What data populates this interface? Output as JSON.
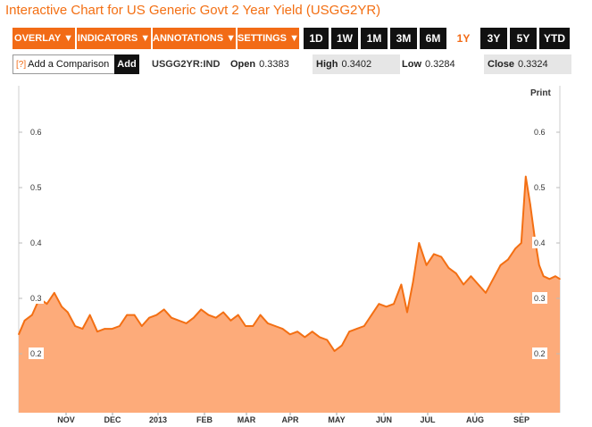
{
  "page_title": "Interactive Chart for US Generic Govt 2 Year Yield (USGG2YR)",
  "menus": [
    {
      "label": "OVERLAY",
      "arrow": "▼"
    },
    {
      "label": "INDICATORS",
      "arrow": "▼"
    },
    {
      "label": "ANNOTATIONS",
      "arrow": "▼"
    },
    {
      "label": "SETTINGS",
      "arrow": "▼"
    }
  ],
  "ranges": [
    "1D",
    "1W",
    "1M",
    "3M",
    "6M",
    "1Y",
    "3Y",
    "5Y",
    "YTD"
  ],
  "active_range": "1Y",
  "comparison": {
    "icon": "[?]",
    "placeholder": "Add a Comparison",
    "add_label": "Add"
  },
  "ticker": "USGG2YR:IND",
  "quote": {
    "open_label": "Open",
    "open": "0.3383",
    "high_label": "High",
    "high": "0.3402",
    "low_label": "Low",
    "low": "0.3284",
    "close_label": "Close",
    "close": "0.3324"
  },
  "print_label": "Print",
  "colors": {
    "accent": "#f26b16",
    "area_fill": "#fdab7a",
    "line": "#f36f13",
    "dark_button": "#111111"
  },
  "chart_data": {
    "type": "area",
    "title": "",
    "xlabel": "",
    "ylabel": "",
    "ylim": [
      0.1,
      0.66
    ],
    "yticks": [
      "0.6",
      "0.5",
      "0.4",
      "0.3",
      "0.2"
    ],
    "xticks": [
      "NOV",
      "DEC",
      "2013",
      "FEB",
      "MAR",
      "APR",
      "MAY",
      "JUN",
      "JUL",
      "AUG",
      "SEP"
    ],
    "grid": false,
    "x": [
      "2012-10-01",
      "2012-10-05",
      "2012-10-10",
      "2012-10-15",
      "2012-10-20",
      "2012-10-25",
      "2012-10-30",
      "2012-11-03",
      "2012-11-08",
      "2012-11-13",
      "2012-11-18",
      "2012-11-23",
      "2012-11-28",
      "2012-12-03",
      "2012-12-08",
      "2012-12-13",
      "2012-12-18",
      "2012-12-23",
      "2012-12-28",
      "2013-01-02",
      "2013-01-07",
      "2013-01-12",
      "2013-01-17",
      "2013-01-22",
      "2013-01-27",
      "2013-02-01",
      "2013-02-06",
      "2013-02-11",
      "2013-02-16",
      "2013-02-21",
      "2013-02-26",
      "2013-03-03",
      "2013-03-08",
      "2013-03-13",
      "2013-03-18",
      "2013-03-23",
      "2013-03-28",
      "2013-04-02",
      "2013-04-07",
      "2013-04-12",
      "2013-04-17",
      "2013-04-22",
      "2013-04-27",
      "2013-05-02",
      "2013-05-07",
      "2013-05-12",
      "2013-05-17",
      "2013-05-22",
      "2013-05-27",
      "2013-06-01",
      "2013-06-06",
      "2013-06-11",
      "2013-06-16",
      "2013-06-20",
      "2013-06-24",
      "2013-06-28",
      "2013-07-03",
      "2013-07-08",
      "2013-07-13",
      "2013-07-18",
      "2013-07-23",
      "2013-07-28",
      "2013-08-02",
      "2013-08-07",
      "2013-08-12",
      "2013-08-17",
      "2013-08-22",
      "2013-08-27",
      "2013-09-01",
      "2013-09-05",
      "2013-09-08",
      "2013-09-11",
      "2013-09-14",
      "2013-09-17",
      "2013-09-20",
      "2013-09-24",
      "2013-09-28",
      "2013-10-01"
    ],
    "values": [
      0.235,
      0.26,
      0.27,
      0.3,
      0.29,
      0.31,
      0.285,
      0.275,
      0.25,
      0.245,
      0.27,
      0.24,
      0.245,
      0.245,
      0.25,
      0.27,
      0.27,
      0.25,
      0.265,
      0.27,
      0.28,
      0.265,
      0.26,
      0.255,
      0.265,
      0.28,
      0.27,
      0.265,
      0.275,
      0.26,
      0.27,
      0.25,
      0.25,
      0.27,
      0.255,
      0.25,
      0.245,
      0.235,
      0.24,
      0.23,
      0.24,
      0.23,
      0.225,
      0.205,
      0.215,
      0.24,
      0.245,
      0.25,
      0.27,
      0.29,
      0.285,
      0.29,
      0.325,
      0.275,
      0.33,
      0.4,
      0.36,
      0.38,
      0.375,
      0.355,
      0.345,
      0.325,
      0.34,
      0.325,
      0.31,
      0.335,
      0.36,
      0.37,
      0.39,
      0.4,
      0.52,
      0.47,
      0.41,
      0.36,
      0.34,
      0.335,
      0.34,
      0.335
    ]
  }
}
